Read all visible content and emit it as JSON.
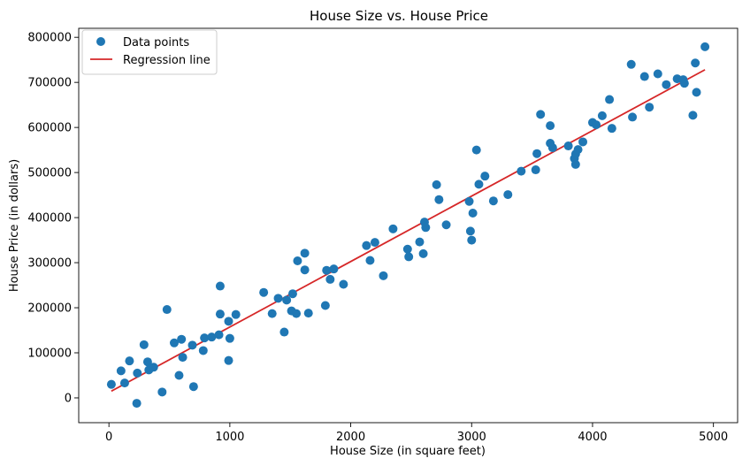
{
  "chart_data": {
    "type": "scatter",
    "title": "House Size vs. House Price",
    "xlabel": "House Size (in square feet)",
    "ylabel": "House Price (in dollars)",
    "xlim": [
      -250,
      5200
    ],
    "ylim": [
      -55000,
      820000
    ],
    "xticks": [
      0,
      1000,
      2000,
      3000,
      4000,
      5000
    ],
    "yticks": [
      0,
      100000,
      200000,
      300000,
      400000,
      500000,
      600000,
      700000,
      800000
    ],
    "legend_position": "top-left",
    "colors": {
      "points": "#1f77b4",
      "line": "#d62728"
    },
    "series": [
      {
        "name": "Data points",
        "kind": "scatter",
        "points": [
          [
            20,
            30000
          ],
          [
            100,
            60000
          ],
          [
            130,
            33000
          ],
          [
            170,
            82000
          ],
          [
            230,
            -12000
          ],
          [
            235,
            55000
          ],
          [
            290,
            118000
          ],
          [
            320,
            80000
          ],
          [
            330,
            62000
          ],
          [
            370,
            68000
          ],
          [
            440,
            13000
          ],
          [
            480,
            196000
          ],
          [
            540,
            122000
          ],
          [
            580,
            50000
          ],
          [
            600,
            130000
          ],
          [
            610,
            90000
          ],
          [
            690,
            117000
          ],
          [
            700,
            25000
          ],
          [
            780,
            105000
          ],
          [
            790,
            133000
          ],
          [
            850,
            135000
          ],
          [
            910,
            140000
          ],
          [
            920,
            186000
          ],
          [
            920,
            248000
          ],
          [
            990,
            170000
          ],
          [
            990,
            83000
          ],
          [
            1000,
            132000
          ],
          [
            1050,
            185000
          ],
          [
            1280,
            234000
          ],
          [
            1350,
            187000
          ],
          [
            1400,
            221000
          ],
          [
            1450,
            146000
          ],
          [
            1470,
            217000
          ],
          [
            1510,
            193000
          ],
          [
            1520,
            231000
          ],
          [
            1550,
            187000
          ],
          [
            1560,
            304000
          ],
          [
            1620,
            284000
          ],
          [
            1620,
            321000
          ],
          [
            1650,
            188000
          ],
          [
            1790,
            205000
          ],
          [
            1800,
            283000
          ],
          [
            1830,
            263000
          ],
          [
            1860,
            286000
          ],
          [
            1940,
            252000
          ],
          [
            2130,
            338000
          ],
          [
            2160,
            305000
          ],
          [
            2200,
            345000
          ],
          [
            2270,
            271000
          ],
          [
            2350,
            375000
          ],
          [
            2470,
            330000
          ],
          [
            2480,
            313000
          ],
          [
            2570,
            346000
          ],
          [
            2600,
            320000
          ],
          [
            2610,
            390000
          ],
          [
            2620,
            378000
          ],
          [
            2710,
            473000
          ],
          [
            2730,
            440000
          ],
          [
            2790,
            384000
          ],
          [
            2980,
            436000
          ],
          [
            2990,
            370000
          ],
          [
            3000,
            350000
          ],
          [
            3010,
            410000
          ],
          [
            3040,
            550000
          ],
          [
            3060,
            474000
          ],
          [
            3110,
            492000
          ],
          [
            3180,
            437000
          ],
          [
            3300,
            451000
          ],
          [
            3410,
            503000
          ],
          [
            3530,
            506000
          ],
          [
            3540,
            542000
          ],
          [
            3570,
            629000
          ],
          [
            3650,
            604000
          ],
          [
            3650,
            565000
          ],
          [
            3670,
            555000
          ],
          [
            3800,
            559000
          ],
          [
            3850,
            531000
          ],
          [
            3860,
            518000
          ],
          [
            3860,
            541000
          ],
          [
            3880,
            551000
          ],
          [
            3920,
            568000
          ],
          [
            4000,
            611000
          ],
          [
            4030,
            606000
          ],
          [
            4080,
            626000
          ],
          [
            4140,
            662000
          ],
          [
            4160,
            598000
          ],
          [
            4320,
            740000
          ],
          [
            4330,
            623000
          ],
          [
            4430,
            713000
          ],
          [
            4470,
            645000
          ],
          [
            4540,
            719000
          ],
          [
            4610,
            695000
          ],
          [
            4700,
            708000
          ],
          [
            4750,
            706000
          ],
          [
            4760,
            698000
          ],
          [
            4830,
            627000
          ],
          [
            4850,
            743000
          ],
          [
            4860,
            678000
          ],
          [
            4930,
            779000
          ]
        ]
      },
      {
        "name": "Regression line",
        "kind": "line",
        "x": [
          20,
          4930
        ],
        "y": [
          15000,
          728000
        ]
      }
    ]
  }
}
